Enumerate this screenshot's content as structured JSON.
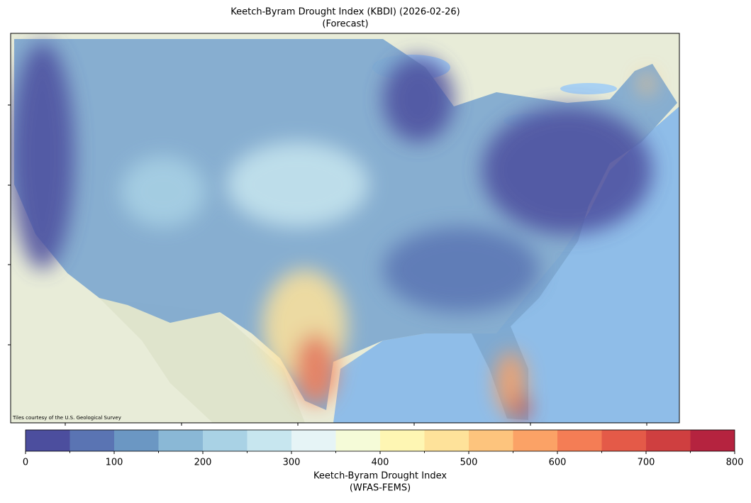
{
  "title": "Keetch-Byram Drought Index (KBDI) (2026-02-26)",
  "subtitle": "(Forecast)",
  "attribution": "Tiles courtesy of the U.S. Geological Survey",
  "colorbar": {
    "label": "Keetch-Byram Drought Index",
    "sublabel": "(WFAS-FEMS)",
    "lim": [
      0,
      800
    ],
    "ticks": [
      0,
      100,
      200,
      300,
      400,
      500,
      600,
      700,
      800
    ],
    "bins": [
      0,
      50,
      100,
      150,
      200,
      250,
      300,
      350,
      400,
      450,
      500,
      550,
      600,
      650,
      700,
      750,
      800
    ],
    "colors": [
      "#4c4e9e",
      "#5a74b3",
      "#6b97c3",
      "#8ab8d6",
      "#a9d2e5",
      "#c7e6ef",
      "#e6f4f6",
      "#f5fbd8",
      "#fef6b3",
      "#fee29a",
      "#fdc47d",
      "#fba266",
      "#f47d55",
      "#e45a48",
      "#cf3f40",
      "#b5233f"
    ]
  }
}
